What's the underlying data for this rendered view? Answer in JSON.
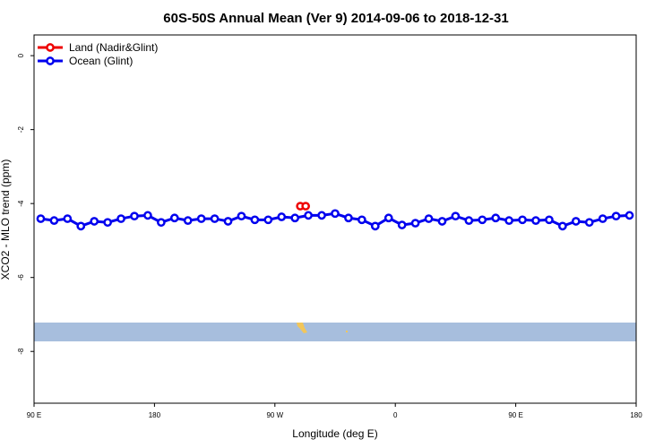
{
  "chart_data": {
    "type": "line",
    "title": "60S-50S Annual Mean (Ver 9)   2014-09-06 to 2018-12-31",
    "x_label": "Longitude (deg E)",
    "y_label": "XCO2 - MLO trend (ppm)",
    "xlim": [
      90,
      540
    ],
    "ylim": [
      -9.4,
      0.56
    ],
    "xticks": [
      {
        "value": 90,
        "label": "90 E"
      },
      {
        "value": 180,
        "label": "180"
      },
      {
        "value": 270,
        "label": "90 W"
      },
      {
        "value": 360,
        "label": "0"
      },
      {
        "value": 450,
        "label": "90 E"
      },
      {
        "value": 540,
        "label": "180"
      }
    ],
    "yticks": [
      0,
      -2,
      -4,
      -6,
      -8
    ],
    "legend": "top-left",
    "series": [
      {
        "name": "Land (Nadir&Glint)",
        "color": "#ee0000",
        "x": [
          289,
          293
        ],
        "values": [
          -4.07,
          -4.07
        ]
      },
      {
        "name": "Ocean (Glint)",
        "color": "#0000ee",
        "x": [
          95,
          105,
          115,
          125,
          135,
          145,
          155,
          165,
          175,
          185,
          195,
          205,
          215,
          225,
          235,
          245,
          255,
          265,
          275,
          285,
          295,
          305,
          315,
          325,
          335,
          345,
          355,
          365,
          375,
          385,
          395,
          405,
          415,
          425,
          435,
          445,
          455,
          465,
          475,
          485,
          495,
          505,
          515,
          525,
          535
        ],
        "values": [
          -4.41,
          -4.46,
          -4.41,
          -4.61,
          -4.48,
          -4.51,
          -4.41,
          -4.34,
          -4.32,
          -4.51,
          -4.39,
          -4.46,
          -4.41,
          -4.41,
          -4.48,
          -4.34,
          -4.44,
          -4.44,
          -4.36,
          -4.39,
          -4.32,
          -4.32,
          -4.27,
          -4.39,
          -4.44,
          -4.61,
          -4.39,
          -4.58,
          -4.53,
          -4.41,
          -4.48,
          -4.34,
          -4.46,
          -4.44,
          -4.39,
          -4.46,
          -4.44,
          -4.46,
          -4.44,
          -4.61,
          -4.48,
          -4.51,
          -4.41,
          -4.34,
          -4.32
        ]
      }
    ]
  }
}
